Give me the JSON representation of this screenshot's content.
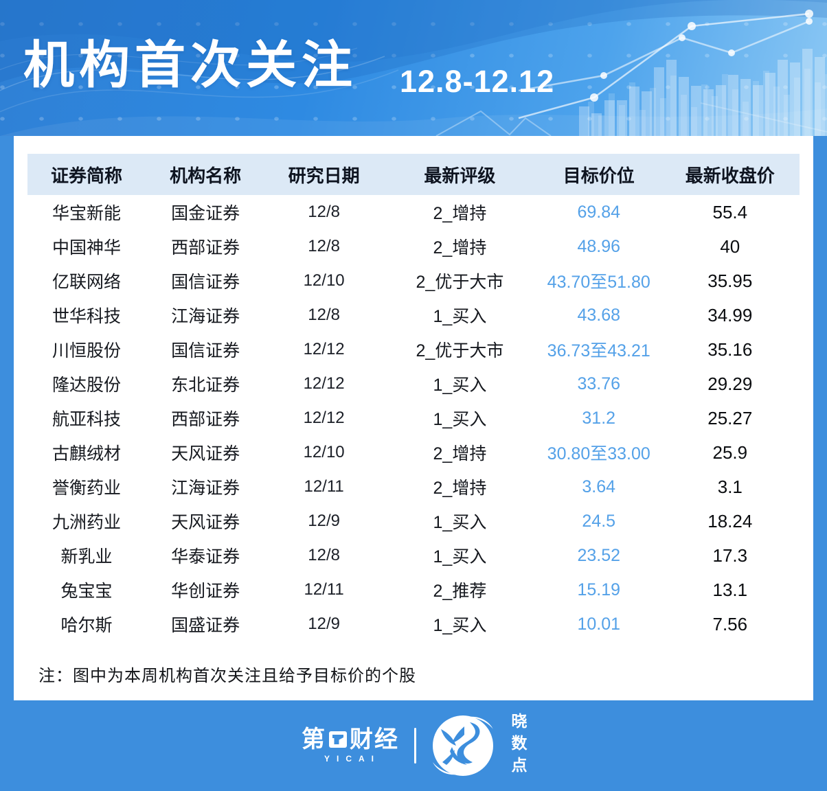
{
  "header": {
    "title": "机构首次关注",
    "date_range": "12.8-12.12"
  },
  "table": {
    "columns": [
      "证券简称",
      "机构名称",
      "研究日期",
      "最新评级",
      "目标价位",
      "最新收盘价"
    ],
    "rows": [
      {
        "name": "华宝新能",
        "org": "国金证券",
        "date": "12/8",
        "rating": "2_增持",
        "target": "69.84",
        "close": "55.4"
      },
      {
        "name": "中国神华",
        "org": "西部证券",
        "date": "12/8",
        "rating": "2_增持",
        "target": "48.96",
        "close": "40"
      },
      {
        "name": "亿联网络",
        "org": "国信证券",
        "date": "12/10",
        "rating": "2_优于大市",
        "target": "43.70至51.80",
        "close": "35.95"
      },
      {
        "name": "世华科技",
        "org": "江海证券",
        "date": "12/8",
        "rating": "1_买入",
        "target": "43.68",
        "close": "34.99"
      },
      {
        "name": "川恒股份",
        "org": "国信证券",
        "date": "12/12",
        "rating": "2_优于大市",
        "target": "36.73至43.21",
        "close": "35.16"
      },
      {
        "name": "隆达股份",
        "org": "东北证券",
        "date": "12/12",
        "rating": "1_买入",
        "target": "33.76",
        "close": "29.29"
      },
      {
        "name": "航亚科技",
        "org": "西部证券",
        "date": "12/12",
        "rating": "1_买入",
        "target": "31.2",
        "close": "25.27"
      },
      {
        "name": "古麒绒材",
        "org": "天风证券",
        "date": "12/10",
        "rating": "2_增持",
        "target": "30.80至33.00",
        "close": "25.9"
      },
      {
        "name": "誉衡药业",
        "org": "江海证券",
        "date": "12/11",
        "rating": "2_增持",
        "target": "3.64",
        "close": "3.1"
      },
      {
        "name": "九洲药业",
        "org": "天风证券",
        "date": "12/9",
        "rating": "1_买入",
        "target": "24.5",
        "close": "18.24"
      },
      {
        "name": "新乳业",
        "org": "华泰证券",
        "date": "12/8",
        "rating": "1_买入",
        "target": "23.52",
        "close": "17.3"
      },
      {
        "name": "兔宝宝",
        "org": "华创证券",
        "date": "12/11",
        "rating": "2_推荐",
        "target": "15.19",
        "close": "13.1"
      },
      {
        "name": "哈尔斯",
        "org": "国盛证券",
        "date": "12/9",
        "rating": "1_买入",
        "target": "10.01",
        "close": "7.56"
      }
    ]
  },
  "note": "注：图中为本周机构首次关注且给予目标价的个股",
  "footer": {
    "brand": "第",
    "brand2": "财经",
    "brand_en": "YICAI",
    "logo2_text": "晓数点"
  },
  "colors": {
    "page_blue": "#3d8edd",
    "header_band": "#dce9f6",
    "target_blue": "#54a1e8",
    "text_dark": "#0e1420"
  }
}
